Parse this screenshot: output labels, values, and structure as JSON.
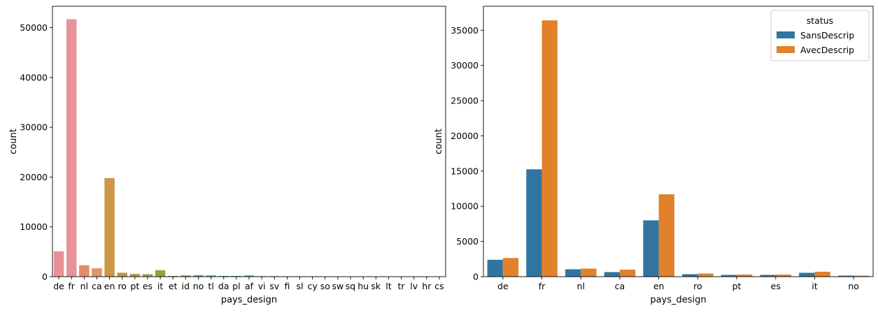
{
  "chart_data": [
    {
      "type": "bar",
      "xlabel": "pays_design",
      "ylabel": "count",
      "ylim": [
        0,
        54300
      ],
      "yticks": [
        0,
        10000,
        20000,
        30000,
        40000,
        50000
      ],
      "categories": [
        "de",
        "fr",
        "nl",
        "ca",
        "en",
        "ro",
        "pt",
        "es",
        "it",
        "et",
        "id",
        "no",
        "tl",
        "da",
        "pl",
        "af",
        "vi",
        "sv",
        "fi",
        "sl",
        "cy",
        "so",
        "sw",
        "sq",
        "hu",
        "sk",
        "lt",
        "tr",
        "lv",
        "hr",
        "cs"
      ],
      "values": [
        5100,
        51700,
        2300,
        1700,
        19800,
        800,
        550,
        500,
        1300,
        150,
        250,
        300,
        250,
        150,
        150,
        250,
        100,
        100,
        80,
        80,
        70,
        60,
        60,
        50,
        50,
        40,
        40,
        30,
        30,
        30,
        20
      ],
      "colors": [
        "#e8919a",
        "#e8919a",
        "#e28d6e",
        "#de9560",
        "#cb9749",
        "#bc9a43",
        "#a89d47",
        "#99a04a",
        "#8ea440",
        "#7aa648",
        "#66a650",
        "#55a85e",
        "#4aa876",
        "#46a585",
        "#45a592",
        "#46a59e",
        "#48a4ab",
        "#4aa2b9",
        "#4fa0c8",
        "#589bd6",
        "#6f94e2",
        "#8a8de9",
        "#9f86ec",
        "#b280ec",
        "#c47ae7",
        "#d278dc",
        "#dd77cf",
        "#e478c2",
        "#e87ab6",
        "#e87caa",
        "#e8819e"
      ],
      "grid": false
    },
    {
      "type": "bar",
      "xlabel": "pays_design",
      "ylabel": "count",
      "ylim": [
        0,
        38400
      ],
      "yticks": [
        0,
        5000,
        10000,
        15000,
        20000,
        25000,
        30000,
        35000
      ],
      "categories": [
        "de",
        "fr",
        "nl",
        "ca",
        "en",
        "ro",
        "pt",
        "es",
        "it",
        "no"
      ],
      "series": [
        {
          "name": "SansDescrip",
          "color": "#3274a1",
          "values": [
            2400,
            15250,
            1050,
            650,
            8000,
            350,
            250,
            250,
            550,
            150
          ]
        },
        {
          "name": "AvecDescrip",
          "color": "#e1812c",
          "values": [
            2650,
            36400,
            1150,
            1000,
            11700,
            450,
            300,
            300,
            700,
            150
          ]
        }
      ],
      "legend": {
        "title": "status",
        "position": "top-right"
      },
      "grid": false
    }
  ]
}
